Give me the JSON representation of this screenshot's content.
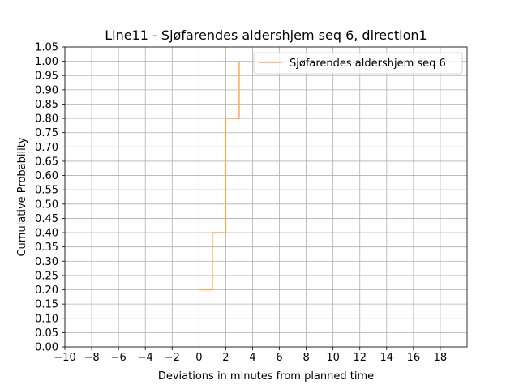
{
  "chart_data": {
    "type": "line",
    "title": "Line11 - Sjøfarendes aldershjem seq 6, direction1",
    "xlabel": "Deviations in minutes from planned time",
    "ylabel": "Cumulative Probability",
    "xlim": [
      -10,
      20
    ],
    "ylim": [
      0,
      1.05
    ],
    "x_ticks": [
      -10,
      -8,
      -6,
      -4,
      -2,
      0,
      2,
      4,
      6,
      8,
      10,
      12,
      14,
      16,
      18
    ],
    "x_tick_labels": [
      "−10",
      "−8",
      "−6",
      "−4",
      "−2",
      "0",
      "2",
      "4",
      "6",
      "8",
      "10",
      "12",
      "14",
      "16",
      "18"
    ],
    "y_ticks": [
      0,
      0.05,
      0.1,
      0.15,
      0.2,
      0.25,
      0.3,
      0.35,
      0.4,
      0.45,
      0.5,
      0.55,
      0.6,
      0.65,
      0.7,
      0.75,
      0.8,
      0.85,
      0.9,
      0.95,
      1.0,
      1.05
    ],
    "y_tick_labels": [
      "0.00",
      "0.05",
      "0.10",
      "0.15",
      "0.20",
      "0.25",
      "0.30",
      "0.35",
      "0.40",
      "0.45",
      "0.50",
      "0.55",
      "0.60",
      "0.65",
      "0.70",
      "0.75",
      "0.80",
      "0.85",
      "0.90",
      "0.95",
      "1.00",
      "1.05"
    ],
    "grid": true,
    "legend_position": "top-right",
    "series": [
      {
        "name": "Sjøfarendes aldershjem seq 6",
        "color": "#ffa94d",
        "step": "post",
        "x": [
          0,
          1,
          2,
          3
        ],
        "y": [
          0.2,
          0.4,
          0.8,
          1.0
        ]
      }
    ]
  }
}
